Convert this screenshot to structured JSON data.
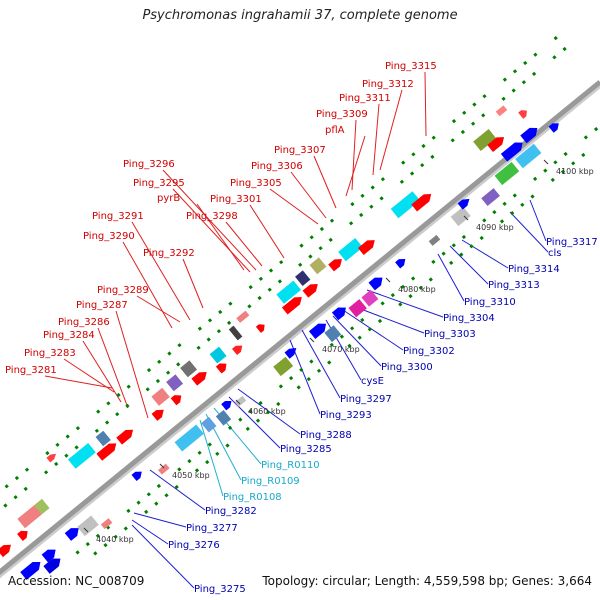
{
  "title": "Psychromonas ingrahamii 37, complete genome",
  "footer": {
    "accession": "Accession: NC_008709",
    "summary": "Topology: circular; Length: 4,559,598 bp; Genes: 3,664"
  },
  "colors": {
    "backbone": "#999999",
    "upper_label_line": "#e02020",
    "lower_label_line": "#2020d0",
    "rna_label_line": "#20b0d0",
    "forward_cds": "#ff0000",
    "reverse_cds": "#0000ff",
    "tick": "#008000"
  },
  "ticks": [
    {
      "label": "4040 kbp"
    },
    {
      "label": "4050 kbp"
    },
    {
      "label": "4060 kbp"
    },
    {
      "label": "4070 kbp"
    },
    {
      "label": "4080 kbp"
    },
    {
      "label": "4090 kbp"
    },
    {
      "label": "4100 kbp"
    }
  ],
  "upper_labels": [
    {
      "text": "Ping_3281"
    },
    {
      "text": "Ping_3283"
    },
    {
      "text": "Ping_3284"
    },
    {
      "text": "Ping_3286"
    },
    {
      "text": "Ping_3287"
    },
    {
      "text": "Ping_3289"
    },
    {
      "text": "Ping_3290"
    },
    {
      "text": "Ping_3291"
    },
    {
      "text": "Ping_3292"
    },
    {
      "text": "pyrB"
    },
    {
      "text": "Ping_3295"
    },
    {
      "text": "Ping_3296"
    },
    {
      "text": "Ping_3298"
    },
    {
      "text": "Ping_3301"
    },
    {
      "text": "Ping_3305"
    },
    {
      "text": "Ping_3306"
    },
    {
      "text": "Ping_3307"
    },
    {
      "text": "pflA"
    },
    {
      "text": "Ping_3309"
    },
    {
      "text": "Ping_3311"
    },
    {
      "text": "Ping_3312"
    },
    {
      "text": "Ping_3315"
    }
  ],
  "lower_labels": [
    {
      "text": "Ping_3275",
      "kind": "cds"
    },
    {
      "text": "Ping_3276",
      "kind": "cds"
    },
    {
      "text": "Ping_3277",
      "kind": "cds"
    },
    {
      "text": "Ping_3282",
      "kind": "cds"
    },
    {
      "text": "Ping_R0108",
      "kind": "rna"
    },
    {
      "text": "Ping_R0109",
      "kind": "rna"
    },
    {
      "text": "Ping_R0110",
      "kind": "rna"
    },
    {
      "text": "Ping_3285",
      "kind": "cds"
    },
    {
      "text": "Ping_3288",
      "kind": "cds"
    },
    {
      "text": "Ping_3293",
      "kind": "cds"
    },
    {
      "text": "Ping_3297",
      "kind": "cds"
    },
    {
      "text": "cysE",
      "kind": "cds"
    },
    {
      "text": "Ping_3300",
      "kind": "cds"
    },
    {
      "text": "Ping_3302",
      "kind": "cds"
    },
    {
      "text": "Ping_3303",
      "kind": "cds"
    },
    {
      "text": "Ping_3304",
      "kind": "cds"
    },
    {
      "text": "Ping_3310",
      "kind": "cds"
    },
    {
      "text": "Ping_3313",
      "kind": "cds"
    },
    {
      "text": "Ping_3314",
      "kind": "cds"
    },
    {
      "text": "cls",
      "kind": "cds"
    },
    {
      "text": "Ping_3317",
      "kind": "cds"
    }
  ]
}
